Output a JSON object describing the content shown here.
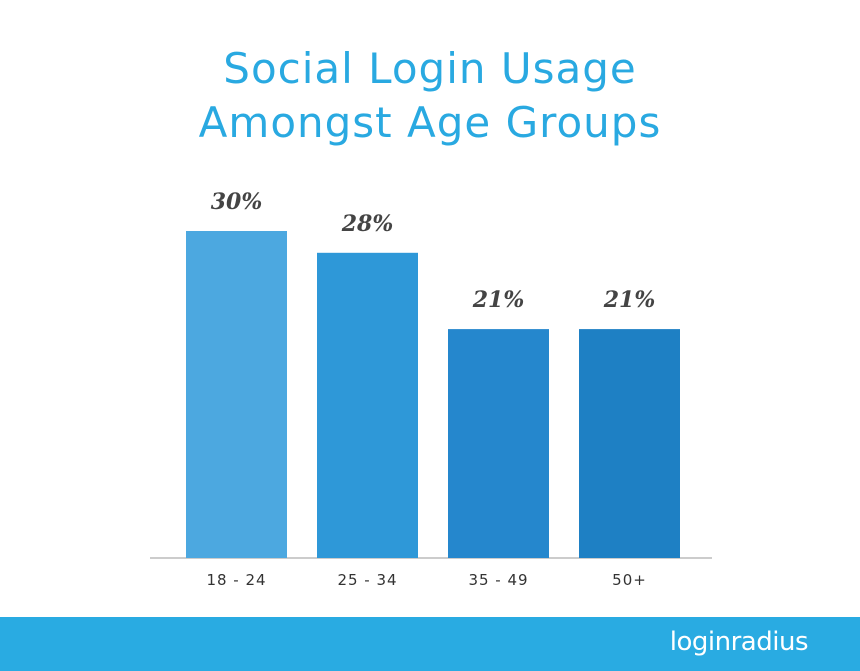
{
  "chart_data": {
    "type": "bar",
    "title": "Social Login Usage Amongst Age Groups",
    "categories": [
      "18 - 24",
      "25 - 34",
      "35 - 49",
      "50+"
    ],
    "values": [
      30,
      28,
      21,
      21
    ],
    "value_labels": [
      "30%",
      "28%",
      "21%",
      "21%"
    ],
    "colors": [
      "#4ca8e0",
      "#2e98d8",
      "#2587cd",
      "#1e80c4"
    ],
    "grid": false
  },
  "footer": {
    "logo": "loginradius"
  }
}
